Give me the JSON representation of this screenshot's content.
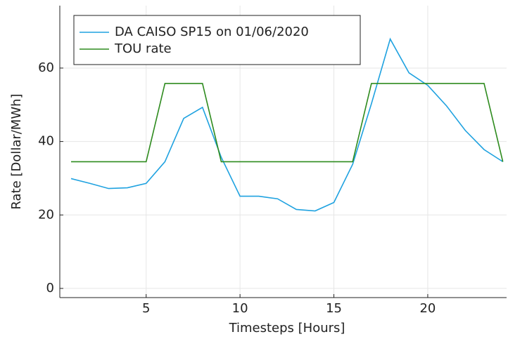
{
  "chart_data": {
    "type": "line",
    "xlabel": "Timesteps [Hours]",
    "ylabel": "Rate [Dollar/MWh]",
    "x": [
      1,
      2,
      3,
      4,
      5,
      6,
      7,
      8,
      9,
      10,
      11,
      12,
      13,
      14,
      15,
      16,
      17,
      18,
      19,
      20,
      21,
      22,
      23,
      24
    ],
    "series": [
      {
        "name": "DA CAISO SP15 on 01/06/2020",
        "color": "#1fa2e0",
        "values": [
          29.9,
          28.6,
          27.2,
          27.4,
          28.6,
          34.5,
          46.3,
          49.3,
          35.7,
          25.1,
          25.1,
          24.4,
          21.5,
          21.1,
          23.4,
          33.8,
          50.3,
          67.9,
          58.7,
          55.3,
          49.7,
          43.0,
          37.8,
          34.5
        ]
      },
      {
        "name": "TOU rate",
        "color": "#2e8b1e",
        "values": [
          34.5,
          34.5,
          34.5,
          34.5,
          34.5,
          55.8,
          55.8,
          55.8,
          34.5,
          34.5,
          34.5,
          34.5,
          34.5,
          34.5,
          34.5,
          34.5,
          55.8,
          55.8,
          55.8,
          55.8,
          55.8,
          55.8,
          55.8,
          34.5
        ]
      }
    ],
    "xlim": [
      0.4,
      24.2
    ],
    "ylim": [
      -2.5,
      77
    ],
    "xticks": [
      5,
      10,
      15,
      20
    ],
    "yticks": [
      0,
      20,
      40,
      60
    ],
    "grid": true,
    "legend": "top-left"
  }
}
